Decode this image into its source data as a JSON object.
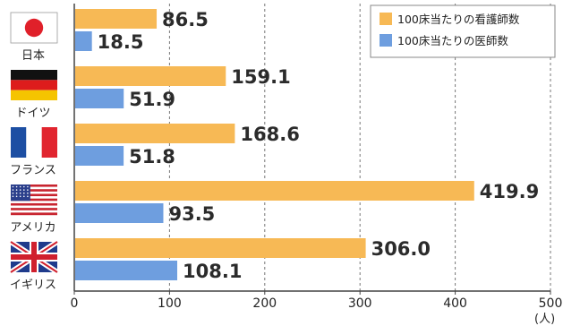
{
  "colors": {
    "nurse": "#F7B955",
    "doctor": "#6E9EDF",
    "axis": "#444444",
    "grid": "#777777"
  },
  "chart_data": {
    "type": "bar",
    "orientation": "horizontal",
    "categories": [
      "日本",
      "ドイツ",
      "フランス",
      "アメリカ",
      "イギリス"
    ],
    "series": [
      {
        "name": "100床当たりの看護師数",
        "values": [
          86.5,
          159.1,
          168.6,
          419.9,
          306.0
        ],
        "value_labels": [
          "86.5",
          "159.1",
          "168.6",
          "419.9",
          "306.0"
        ]
      },
      {
        "name": "100床当たりの医師数",
        "values": [
          18.5,
          51.9,
          51.8,
          93.5,
          108.1
        ],
        "value_labels": [
          "18.5",
          "51.9",
          "51.8",
          "93.5",
          "108.1"
        ]
      }
    ],
    "xlim": [
      0,
      500
    ],
    "xticks": [
      "0",
      "100",
      "200",
      "300",
      "400",
      "500"
    ],
    "xunit": "(人)",
    "grid": "vertical dashed",
    "legend": "top-right",
    "flag_icons": [
      "japan-flag",
      "germany-flag",
      "france-flag",
      "usa-flag",
      "uk-flag"
    ]
  }
}
